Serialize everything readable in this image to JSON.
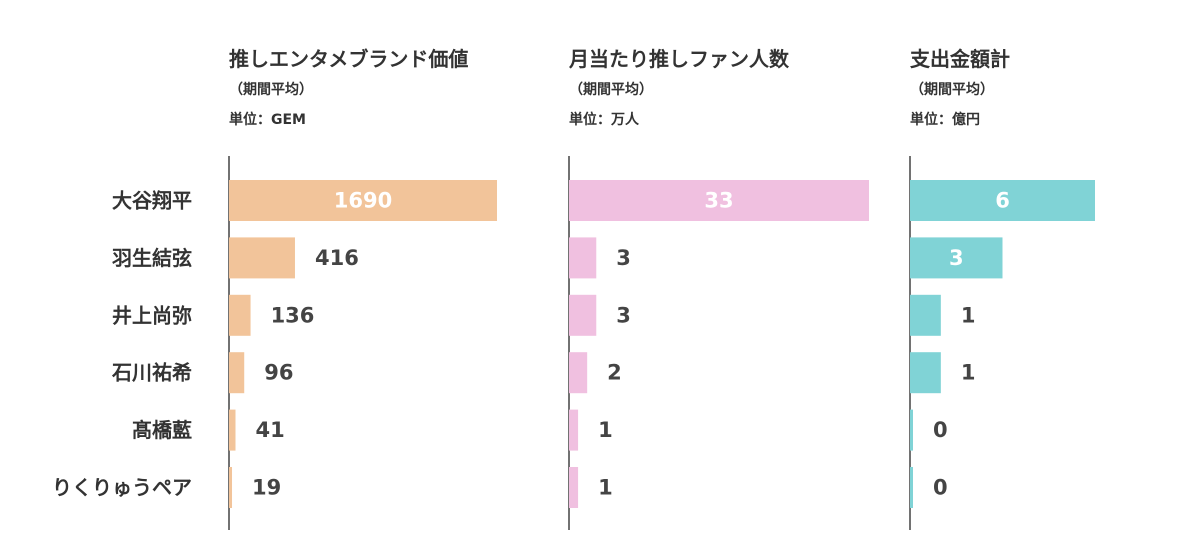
{
  "chart_data": {
    "type": "bar",
    "orientation": "horizontal",
    "categories": [
      "大谷翔平",
      "羽生結弦",
      "井上尚弥",
      "石川祐希",
      "髙橋藍",
      "りくりゅうペア"
    ],
    "series": [
      {
        "name": "推しエンタメブランド価値",
        "period": "（期間平均）",
        "unit": "単位：GEM",
        "color": "#f2c49a",
        "values": [
          1690,
          416,
          136,
          96,
          41,
          19
        ],
        "labels": [
          "1690",
          "416",
          "136",
          "96",
          "41",
          "19"
        ]
      },
      {
        "name": "月当たり推しファン人数",
        "period": "（期間平均）",
        "unit": "単位：万人",
        "color": "#f0c0e0",
        "values": [
          33,
          3,
          3,
          2,
          1,
          1
        ],
        "labels": [
          "33",
          "3",
          "3",
          "2",
          "1",
          "1"
        ]
      },
      {
        "name": "支出金額計",
        "period": "（期間平均）",
        "unit": "単位：億円",
        "color": "#80d3d6",
        "values": [
          6,
          3,
          1,
          1,
          0,
          0
        ],
        "labels": [
          "6",
          "3",
          "1",
          "1",
          "0",
          "0"
        ]
      }
    ]
  }
}
